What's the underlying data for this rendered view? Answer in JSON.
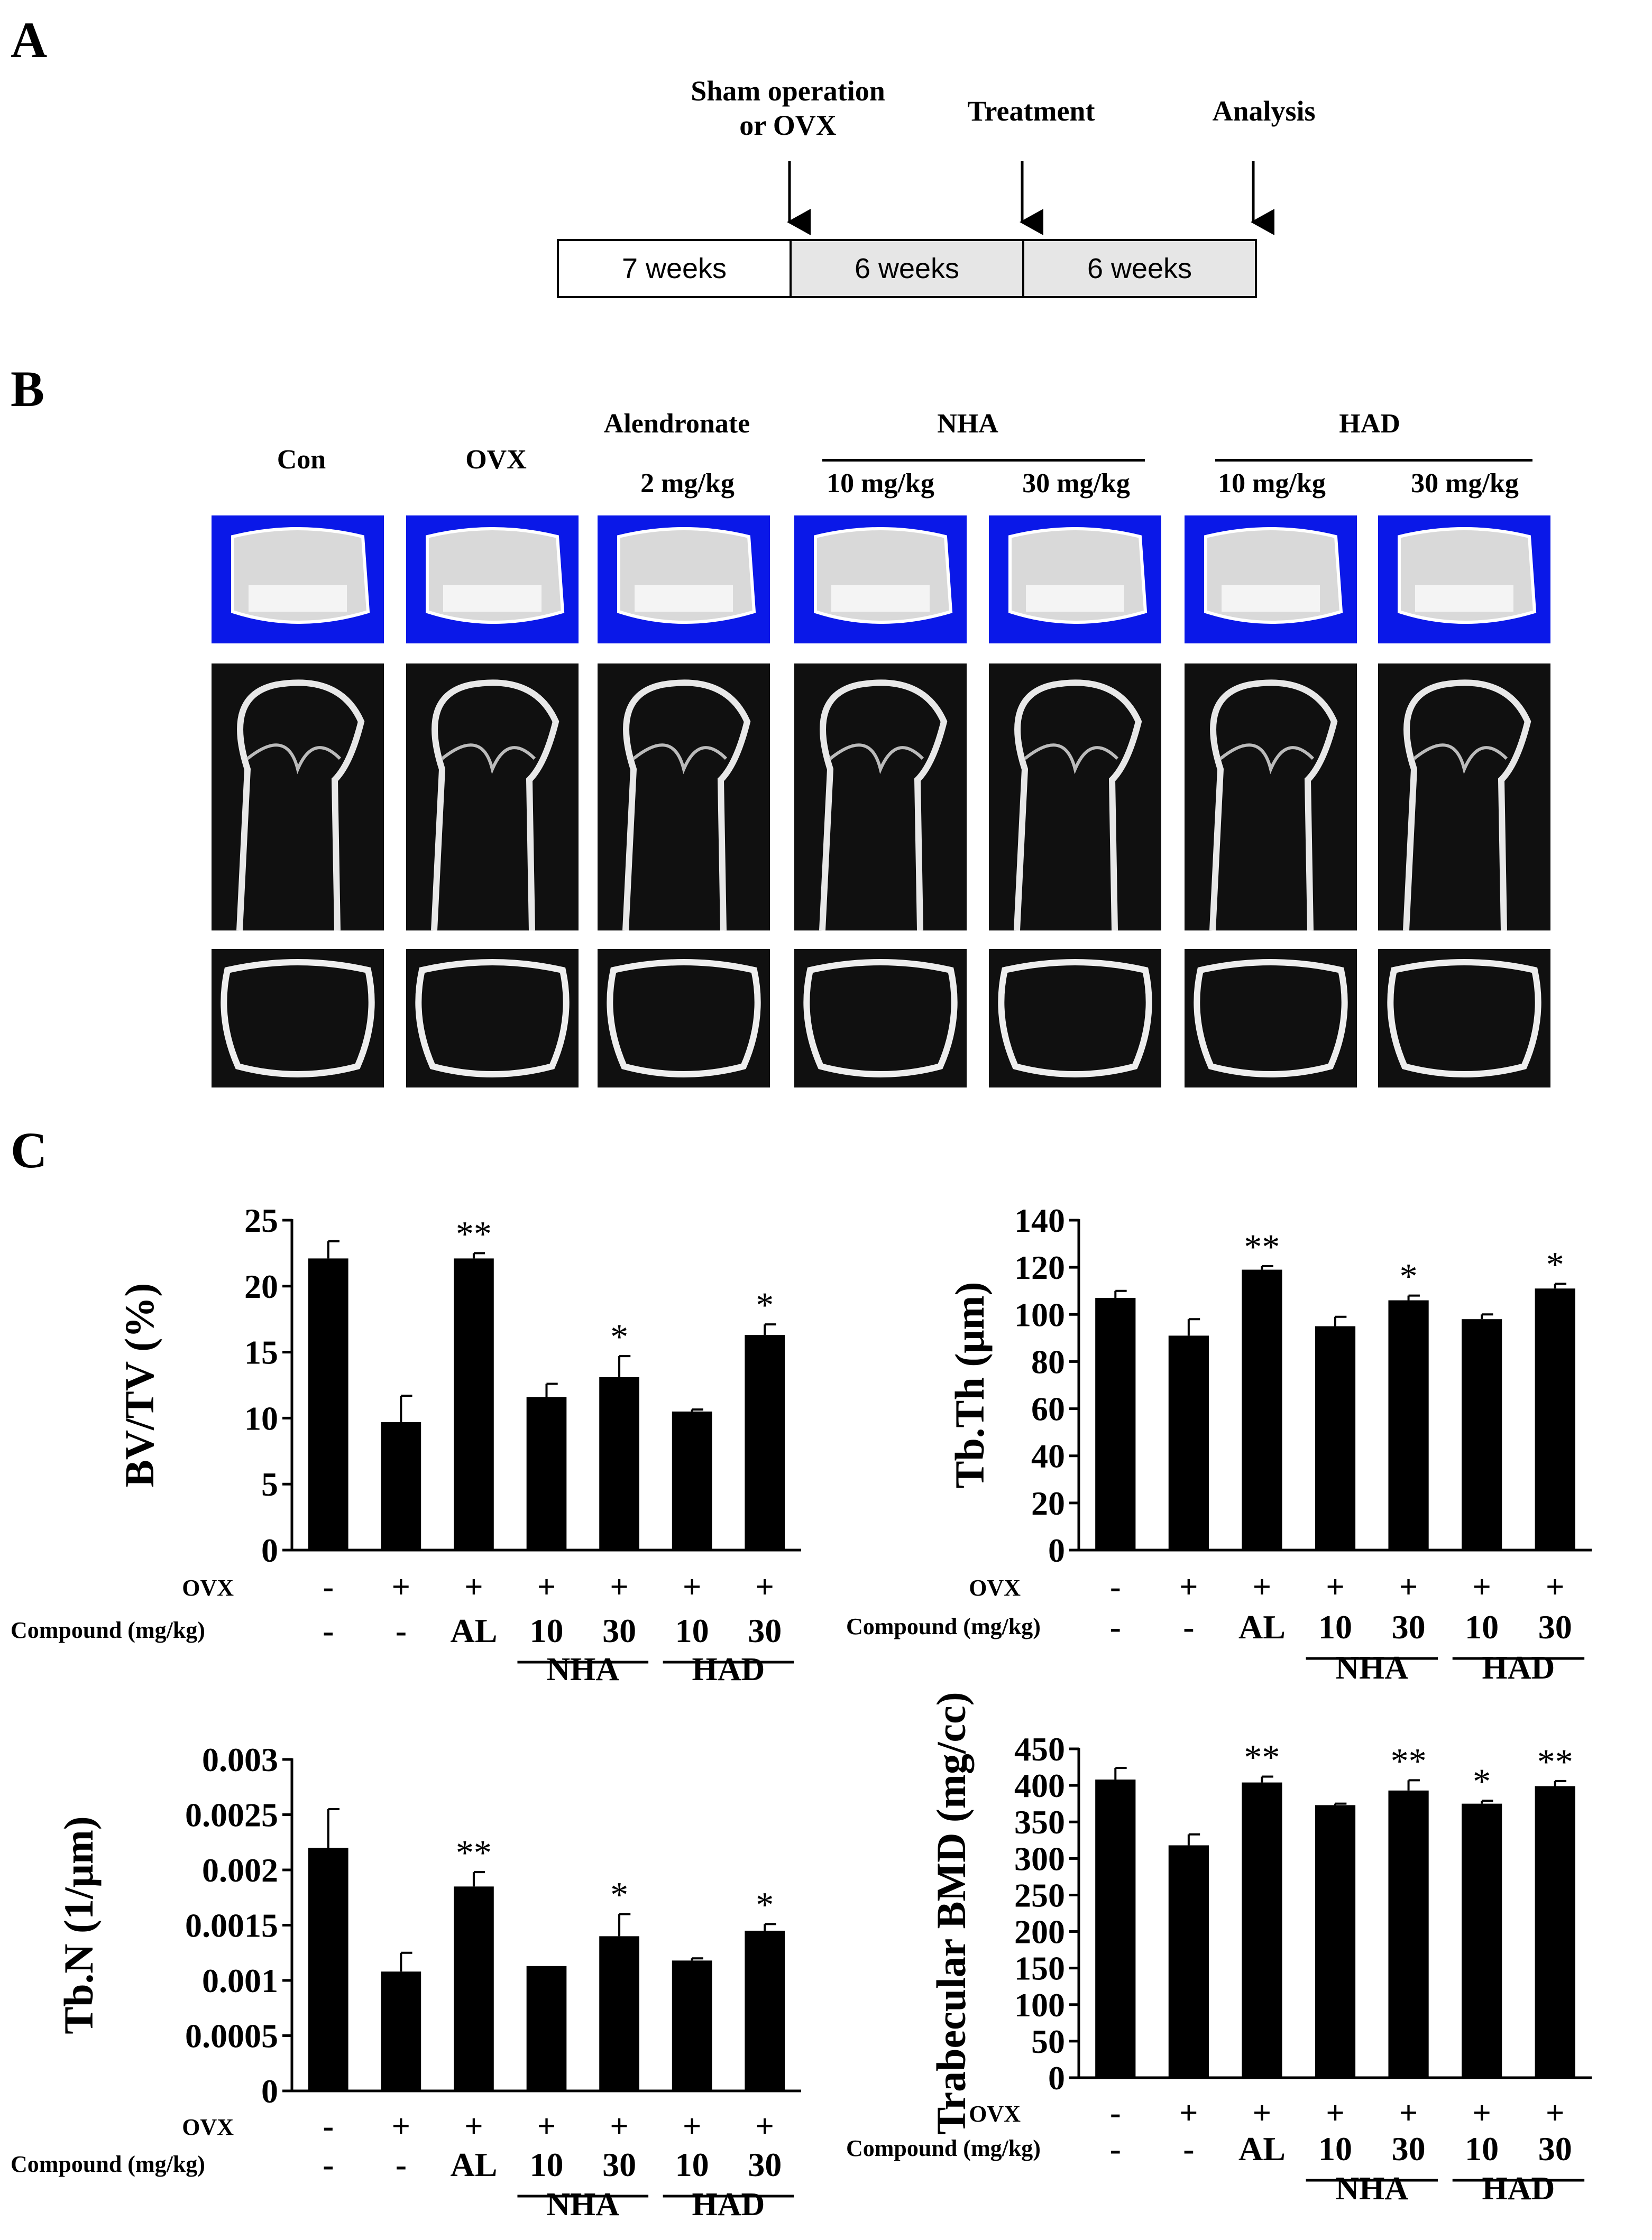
{
  "panels": {
    "A": "A",
    "B": "B",
    "C": "C"
  },
  "timeline": {
    "events": [
      {
        "label_line1": "Sham operation",
        "label_line2": "or OVX"
      },
      {
        "label_line1": "Treatment",
        "label_line2": ""
      },
      {
        "label_line1": "Analysis",
        "label_line2": ""
      }
    ],
    "segments": [
      {
        "label": "7 weeks",
        "shaded": false
      },
      {
        "label": "6 weeks",
        "shaded": true
      },
      {
        "label": "6 weeks",
        "shaded": true
      }
    ]
  },
  "microct": {
    "groups": [
      {
        "header": "",
        "sub": "Con"
      },
      {
        "header": "",
        "sub": "OVX"
      },
      {
        "header": "Alendronate",
        "sub": "2 mg/kg"
      },
      {
        "header": "NHA",
        "sub": "10 mg/kg"
      },
      {
        "header": "",
        "sub": "30 mg/kg"
      },
      {
        "header": "HAD",
        "sub": "10 mg/kg"
      },
      {
        "header": "",
        "sub": "30 mg/kg"
      }
    ],
    "rows": [
      "3d-reconstruction",
      "longitudinal-section",
      "cross-section"
    ]
  },
  "chart_data": [
    {
      "type": "bar",
      "ylabel": "BV/TV (%)",
      "ylim": [
        0,
        25
      ],
      "yticks": [
        "0",
        "5",
        "10",
        "15",
        "20",
        "25"
      ],
      "values": [
        22.1,
        9.7,
        22.1,
        11.6,
        13.1,
        10.5,
        16.3
      ],
      "errors": [
        1.3,
        2.0,
        0.4,
        1.0,
        1.6,
        0.15,
        0.8
      ],
      "significance": [
        "",
        "",
        "**",
        "",
        "*",
        "",
        "*"
      ],
      "rows": {
        "ovx_label": "OVX",
        "ovx": [
          "-",
          "+",
          "+",
          "+",
          "+",
          "+",
          "+"
        ],
        "compound_label": "Compound (mg/kg)",
        "compound": [
          "-",
          "-",
          "AL",
          "10",
          "30",
          "10",
          "30"
        ],
        "groups": [
          "NHA",
          "HAD"
        ]
      },
      "color": "#000000"
    },
    {
      "type": "bar",
      "ylabel": "Tb.Th (μm)",
      "ylim": [
        0,
        140
      ],
      "yticks": [
        "0",
        "20",
        "40",
        "60",
        "80",
        "100",
        "120",
        "140"
      ],
      "values": [
        107,
        91,
        119,
        95,
        106,
        98,
        111
      ],
      "errors": [
        3,
        7,
        1.5,
        4,
        2,
        2,
        2
      ],
      "significance": [
        "",
        "",
        "**",
        "",
        "*",
        "",
        "*"
      ],
      "rows": {
        "ovx_label": "OVX",
        "ovx": [
          "-",
          "+",
          "+",
          "+",
          "+",
          "+",
          "+"
        ],
        "compound_label": "Compound (mg/kg)",
        "compound": [
          "-",
          "-",
          "AL",
          "10",
          "30",
          "10",
          "30"
        ],
        "groups": [
          "NHA",
          "HAD"
        ]
      },
      "color": "#000000"
    },
    {
      "type": "bar",
      "ylabel": "Tb.N (1/μm)",
      "ylim": [
        0,
        0.003
      ],
      "yticks": [
        "0",
        "0.0005",
        "0.001",
        "0.0015",
        "0.002",
        "0.0025",
        "0.003"
      ],
      "values": [
        0.0022,
        0.00108,
        0.00185,
        0.00113,
        0.0014,
        0.00118,
        0.00145
      ],
      "errors": [
        0.00035,
        0.00017,
        0.00013,
        0.0,
        0.0002,
        2e-05,
        6e-05
      ],
      "significance": [
        "",
        "",
        "**",
        "",
        "*",
        "",
        "*"
      ],
      "rows": {
        "ovx_label": "OVX",
        "ovx": [
          "-",
          "+",
          "+",
          "+",
          "+",
          "+",
          "+"
        ],
        "compound_label": "Compound (mg/kg)",
        "compound": [
          "-",
          "-",
          "AL",
          "10",
          "30",
          "10",
          "30"
        ],
        "groups": [
          "NHA",
          "HAD"
        ]
      },
      "color": "#000000"
    },
    {
      "type": "bar",
      "ylabel": "Trabecular BMD (mg/cc)",
      "ylim": [
        0,
        450
      ],
      "yticks": [
        "0",
        "50",
        "100",
        "150",
        "200",
        "250",
        "300",
        "350",
        "400",
        "450"
      ],
      "values": [
        408,
        318,
        404,
        373,
        393,
        375,
        399
      ],
      "errors": [
        16,
        15,
        8,
        2,
        14,
        4,
        7
      ],
      "significance": [
        "",
        "",
        "**",
        "",
        "**",
        "*",
        "**"
      ],
      "rows": {
        "ovx_label": "OVX",
        "ovx": [
          "-",
          "+",
          "+",
          "+",
          "+",
          "+",
          "+"
        ],
        "compound_label": "Compound (mg/kg)",
        "compound": [
          "-",
          "-",
          "AL",
          "10",
          "30",
          "10",
          "30"
        ],
        "groups": [
          "NHA",
          "HAD"
        ]
      },
      "color": "#000000"
    }
  ]
}
